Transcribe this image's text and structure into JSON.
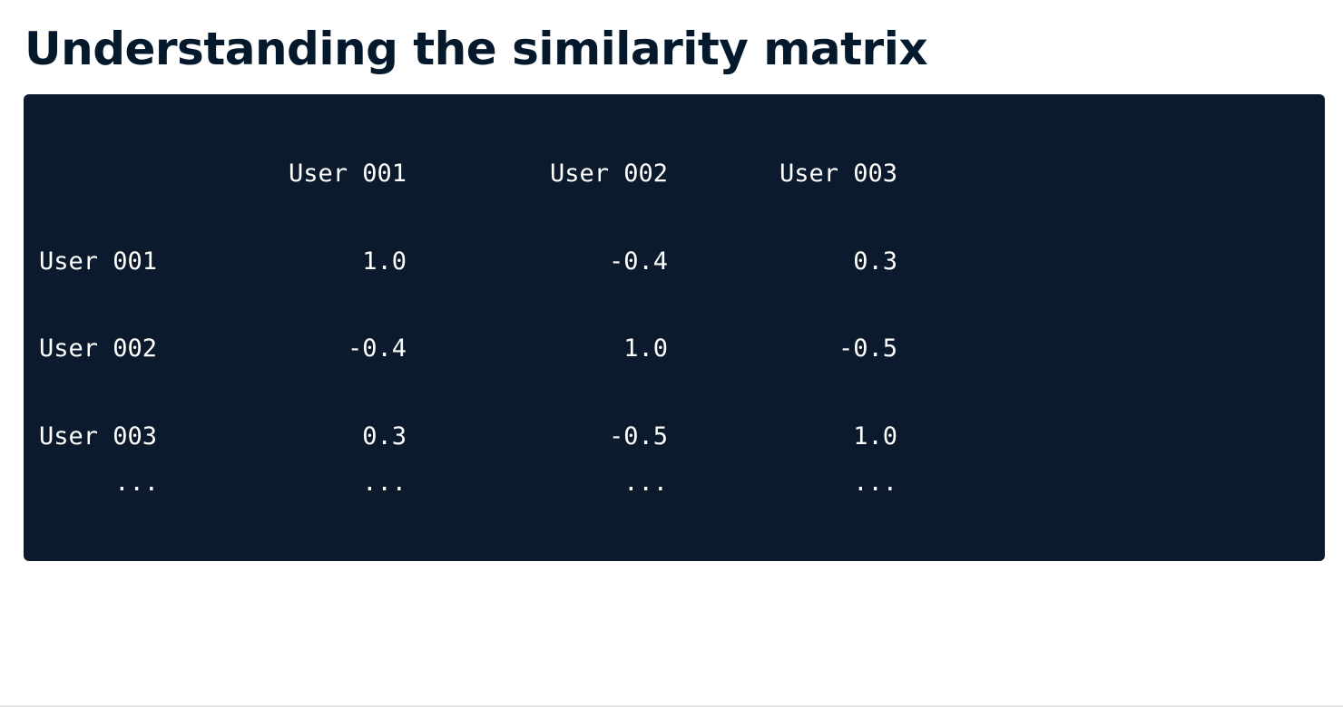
{
  "page": {
    "title": "Understanding the similarity matrix"
  },
  "matrix": {
    "column_headers": [
      "User 001",
      "User 002",
      "User 003"
    ],
    "rows": [
      {
        "label": "User 001",
        "values": [
          "1.0",
          "-0.4",
          "0.3"
        ]
      },
      {
        "label": "User 002",
        "values": [
          "-0.4",
          "1.0",
          "-0.5"
        ]
      },
      {
        "label": "User 003",
        "values": [
          "0.3",
          "-0.5",
          "1.0"
        ]
      }
    ],
    "ellipsis_row": {
      "label": "...",
      "values": [
        "...",
        "...",
        "..."
      ]
    }
  },
  "colors": {
    "title": "#05192d",
    "code_background": "#0b1a2d",
    "code_text": "#ffffff"
  }
}
